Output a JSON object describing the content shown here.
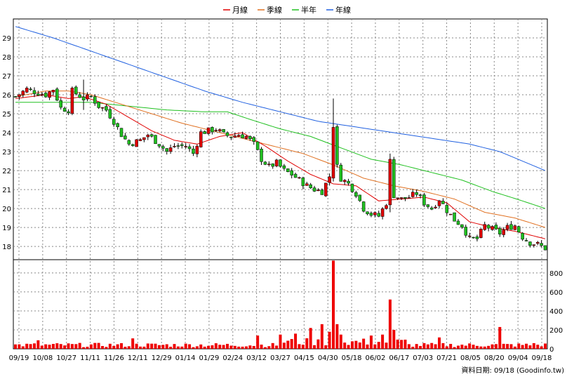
{
  "chart_data": [
    {
      "type": "candlestick",
      "legend": [
        {
          "name": "月線",
          "color": "#e00000"
        },
        {
          "name": "季線",
          "color": "#e07020"
        },
        {
          "name": "半年",
          "color": "#20c020"
        },
        {
          "name": "年線",
          "color": "#2060e0"
        }
      ],
      "ylim": [
        17.3,
        30.0
      ],
      "yticks": [
        18,
        19,
        20,
        21,
        22,
        23,
        24,
        25,
        26,
        27,
        28,
        29
      ],
      "xticks": [
        "09/19",
        "10/08",
        "10/27",
        "11/11",
        "11/26",
        "12/11",
        "12/29",
        "01/14",
        "01/29",
        "02/24",
        "03/12",
        "03/27",
        "04/15",
        "04/30",
        "05/18",
        "06/02",
        "06/17",
        "07/03",
        "07/21",
        "08/05",
        "08/20",
        "09/04",
        "09/18"
      ],
      "up_color": "#e00000",
      "down_color": "#20c020",
      "close_path": [
        [
          0,
          25.9
        ],
        [
          3,
          26.3
        ],
        [
          6,
          26.1
        ],
        [
          8,
          26.0
        ],
        [
          10,
          26.3
        ],
        [
          12,
          25.3
        ],
        [
          14,
          25.2
        ],
        [
          15,
          26.2
        ],
        [
          18,
          25.8
        ],
        [
          20,
          25.9
        ],
        [
          22,
          25.4
        ],
        [
          24,
          25.2
        ],
        [
          26,
          24.6
        ],
        [
          28,
          23.9
        ],
        [
          30,
          23.4
        ],
        [
          33,
          23.6
        ],
        [
          35,
          23.9
        ],
        [
          38,
          23.4
        ],
        [
          40,
          23.0
        ],
        [
          42,
          23.3
        ],
        [
          45,
          23.3
        ],
        [
          47,
          22.9
        ],
        [
          49,
          24.0
        ],
        [
          51,
          24.1
        ],
        [
          53,
          24.2
        ],
        [
          55,
          23.9
        ],
        [
          57,
          23.8
        ],
        [
          59,
          23.9
        ],
        [
          61,
          23.8
        ],
        [
          63,
          23.4
        ],
        [
          65,
          22.6
        ],
        [
          67,
          22.2
        ],
        [
          69,
          22.4
        ],
        [
          71,
          22.0
        ],
        [
          73,
          21.8
        ],
        [
          75,
          21.5
        ],
        [
          77,
          21.2
        ],
        [
          79,
          21.0
        ],
        [
          81,
          20.9
        ],
        [
          83,
          21.7
        ],
        [
          84,
          24.4
        ],
        [
          85,
          22.2
        ],
        [
          86,
          21.6
        ],
        [
          88,
          21.3
        ],
        [
          90,
          20.8
        ],
        [
          92,
          20.0
        ],
        [
          94,
          19.7
        ],
        [
          96,
          19.6
        ],
        [
          98,
          20.3
        ],
        [
          99,
          22.5
        ],
        [
          100,
          20.7
        ],
        [
          102,
          20.5
        ],
        [
          104,
          20.6
        ],
        [
          106,
          20.8
        ],
        [
          108,
          20.3
        ],
        [
          110,
          20.0
        ],
        [
          112,
          20.5
        ],
        [
          114,
          19.9
        ],
        [
          116,
          19.4
        ],
        [
          118,
          19.1
        ],
        [
          120,
          18.4
        ],
        [
          122,
          18.4
        ],
        [
          124,
          19.1
        ],
        [
          126,
          18.9
        ],
        [
          128,
          18.7
        ],
        [
          130,
          19.0
        ],
        [
          132,
          19.1
        ],
        [
          134,
          18.5
        ],
        [
          136,
          18.2
        ],
        [
          138,
          18.1
        ],
        [
          140,
          17.9
        ]
      ],
      "moving_averages": {
        "月線": [
          [
            0,
            25.8
          ],
          [
            8,
            26.0
          ],
          [
            14,
            25.8
          ],
          [
            18,
            25.9
          ],
          [
            24,
            25.5
          ],
          [
            30,
            24.8
          ],
          [
            36,
            24.1
          ],
          [
            42,
            23.6
          ],
          [
            48,
            23.4
          ],
          [
            54,
            23.8
          ],
          [
            60,
            24.0
          ],
          [
            66,
            23.3
          ],
          [
            72,
            22.5
          ],
          [
            78,
            21.8
          ],
          [
            84,
            21.3
          ],
          [
            90,
            21.2
          ],
          [
            96,
            20.4
          ],
          [
            102,
            20.5
          ],
          [
            108,
            20.6
          ],
          [
            114,
            20.3
          ],
          [
            120,
            19.3
          ],
          [
            126,
            19.0
          ],
          [
            132,
            18.8
          ],
          [
            140,
            18.4
          ]
        ],
        "季線": [
          [
            0,
            25.9
          ],
          [
            8,
            26.2
          ],
          [
            14,
            26.2
          ],
          [
            20,
            26.0
          ],
          [
            28,
            25.5
          ],
          [
            36,
            25.0
          ],
          [
            44,
            24.5
          ],
          [
            52,
            24.1
          ],
          [
            60,
            23.7
          ],
          [
            68,
            23.3
          ],
          [
            76,
            22.9
          ],
          [
            84,
            22.3
          ],
          [
            92,
            21.6
          ],
          [
            100,
            21.2
          ],
          [
            108,
            20.9
          ],
          [
            116,
            20.5
          ],
          [
            124,
            19.8
          ],
          [
            132,
            19.5
          ],
          [
            140,
            19.0
          ]
        ],
        "半年": [
          [
            0,
            25.6
          ],
          [
            10,
            25.6
          ],
          [
            20,
            25.6
          ],
          [
            30,
            25.4
          ],
          [
            40,
            25.2
          ],
          [
            50,
            25.1
          ],
          [
            56,
            25.1
          ],
          [
            62,
            24.7
          ],
          [
            70,
            24.2
          ],
          [
            78,
            23.8
          ],
          [
            86,
            23.2
          ],
          [
            94,
            22.6
          ],
          [
            102,
            22.3
          ],
          [
            110,
            21.9
          ],
          [
            118,
            21.5
          ],
          [
            126,
            20.9
          ],
          [
            134,
            20.4
          ],
          [
            140,
            20.0
          ]
        ],
        "年線": [
          [
            0,
            29.6
          ],
          [
            10,
            29.0
          ],
          [
            20,
            28.3
          ],
          [
            30,
            27.6
          ],
          [
            40,
            26.9
          ],
          [
            50,
            26.2
          ],
          [
            60,
            25.6
          ],
          [
            70,
            25.1
          ],
          [
            80,
            24.6
          ],
          [
            90,
            24.3
          ],
          [
            100,
            24.0
          ],
          [
            110,
            23.7
          ],
          [
            120,
            23.4
          ],
          [
            128,
            23.0
          ],
          [
            134,
            22.5
          ],
          [
            140,
            22.0
          ]
        ]
      },
      "spikes": [
        {
          "i": 84,
          "high": 25.8,
          "low": 23.0
        },
        {
          "i": 99,
          "high": 22.9,
          "low": 19.8
        },
        {
          "i": 18,
          "high": 26.8,
          "low": 25.2
        }
      ]
    },
    {
      "type": "bar",
      "ylim": [
        0,
        940
      ],
      "yticks": [
        0,
        200,
        400,
        600,
        800
      ],
      "color": "#ee0000",
      "base_level": 35,
      "peaks": [
        {
          "i": 74,
          "value": 160
        },
        {
          "i": 78,
          "value": 220
        },
        {
          "i": 81,
          "value": 260
        },
        {
          "i": 83,
          "value": 180
        },
        {
          "i": 84,
          "value": 930
        },
        {
          "i": 85,
          "value": 260
        },
        {
          "i": 86,
          "value": 150
        },
        {
          "i": 94,
          "value": 140
        },
        {
          "i": 97,
          "value": 150
        },
        {
          "i": 99,
          "value": 520
        },
        {
          "i": 100,
          "value": 200
        },
        {
          "i": 128,
          "value": 230
        },
        {
          "i": 6,
          "value": 90
        },
        {
          "i": 31,
          "value": 110
        },
        {
          "i": 64,
          "value": 140
        },
        {
          "i": 70,
          "value": 150
        },
        {
          "i": 112,
          "value": 120
        },
        {
          "i": 137,
          "value": 60
        }
      ]
    }
  ],
  "footer": {
    "source": "資料日期: 09/18  (Goodinfo.tw)"
  }
}
